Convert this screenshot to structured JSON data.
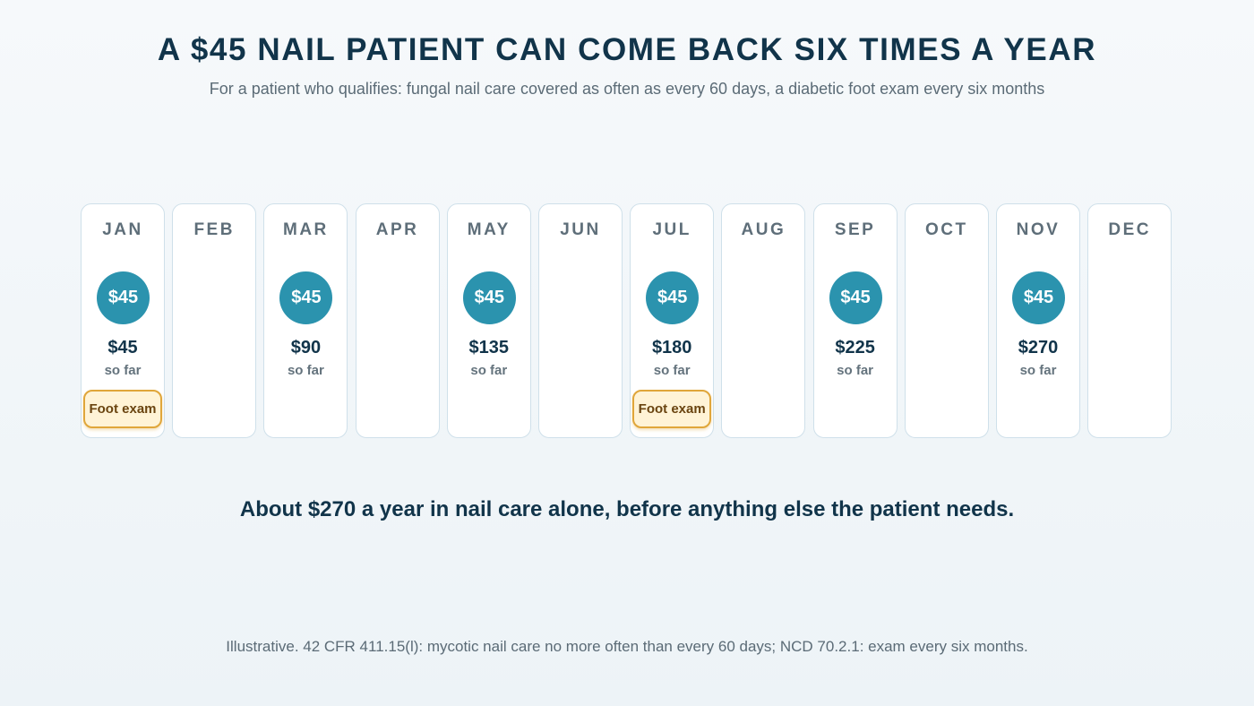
{
  "header": {
    "title": "A $45 NAIL PATIENT CAN COME BACK SIX TIMES A YEAR",
    "subtitle": "For a patient who qualifies: fungal nail care covered as often as every 60 days, a diabetic foot exam every six months"
  },
  "visit_fee": "$45",
  "so_far_label": "so far",
  "exam_label": "Foot exam",
  "months": [
    {
      "label": "JAN",
      "visit": true,
      "cumulative": "$45",
      "exam": true
    },
    {
      "label": "FEB",
      "visit": false
    },
    {
      "label": "MAR",
      "visit": true,
      "cumulative": "$90",
      "exam": false
    },
    {
      "label": "APR",
      "visit": false
    },
    {
      "label": "MAY",
      "visit": true,
      "cumulative": "$135",
      "exam": false
    },
    {
      "label": "JUN",
      "visit": false
    },
    {
      "label": "JUL",
      "visit": true,
      "cumulative": "$180",
      "exam": true
    },
    {
      "label": "AUG",
      "visit": false
    },
    {
      "label": "SEP",
      "visit": true,
      "cumulative": "$225",
      "exam": false
    },
    {
      "label": "OCT",
      "visit": false
    },
    {
      "label": "NOV",
      "visit": true,
      "cumulative": "$270",
      "exam": false
    },
    {
      "label": "DEC",
      "visit": false
    }
  ],
  "summary": "About $270 a year in nail care alone, before anything else the patient needs.",
  "footnote": "Illustrative. 42 CFR 411.15(l): mycotic nail care no more often than every 60 days; NCD 70.2.1: exam every six months.",
  "colors": {
    "visit": "#2b93ae",
    "exam_fill": "#fff3d6",
    "exam_border": "#e0a63a",
    "text_dark": "#11344a"
  }
}
